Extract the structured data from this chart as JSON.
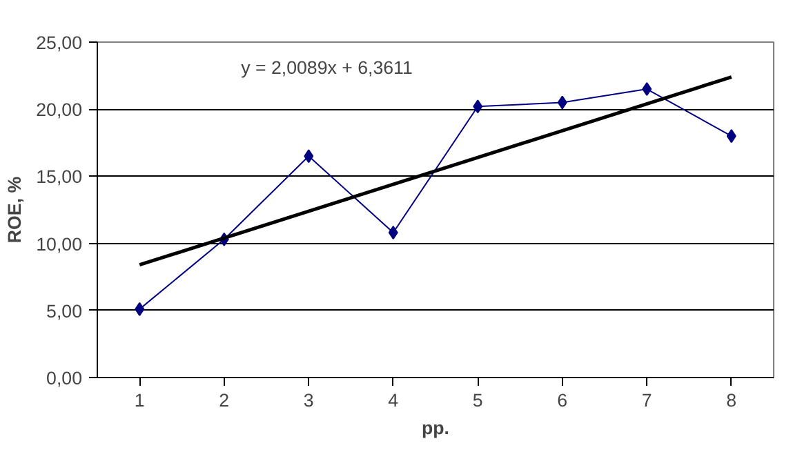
{
  "chart_data": {
    "type": "line",
    "xlabel": "pp.",
    "ylabel": "ROE, %",
    "categories": [
      "1",
      "2",
      "3",
      "4",
      "5",
      "6",
      "7",
      "8"
    ],
    "series": [
      {
        "color": "#000080",
        "values": [
          5.1,
          10.3,
          16.5,
          10.8,
          20.2,
          20.5,
          21.5,
          18.0
        ],
        "marker": "diamond"
      },
      {
        "type": "line",
        "color": "#000000",
        "values": [
          8.4,
          null,
          null,
          null,
          null,
          null,
          null,
          22.4
        ],
        "marker": "none"
      }
    ],
    "ylim": [
      0,
      25
    ],
    "yticks": [
      {
        "value": 0,
        "label": "0,00"
      },
      {
        "value": 5,
        "label": "5,00"
      },
      {
        "value": 10,
        "label": "10,00"
      },
      {
        "value": 15,
        "label": "15,00"
      },
      {
        "value": 20,
        "label": "20,00"
      },
      {
        "value": 25,
        "label": "25,00"
      }
    ],
    "grid": "y",
    "annotations": [
      "y = 2,0089x + 6,3611"
    ]
  }
}
